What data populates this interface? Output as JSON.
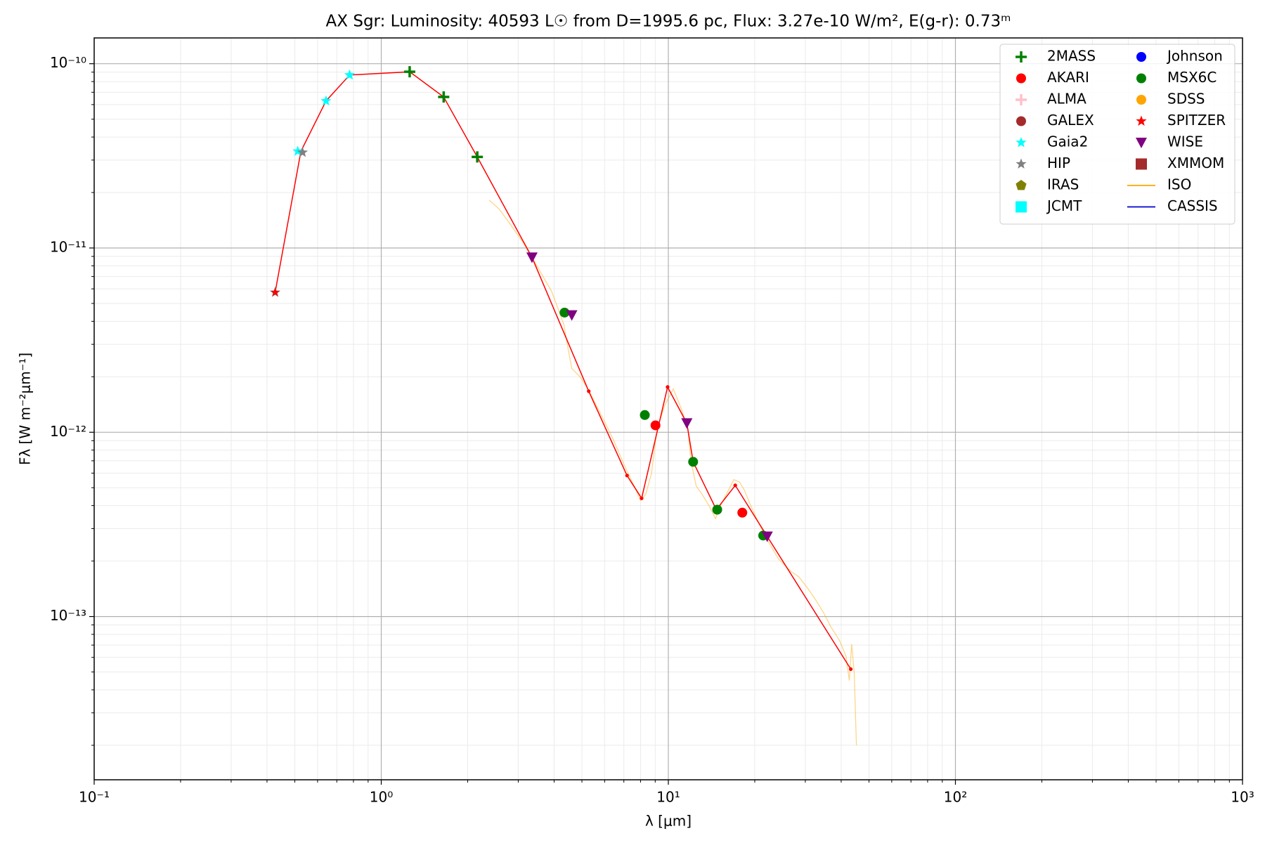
{
  "chart_data": {
    "type": "scatter",
    "title": "AX Sgr:  Luminosity: 40593 L☉ from D=1995.6 pc, Flux: 3.27e-10 W/m², E(g-r): 0.73ᵐ",
    "xlabel": "λ [μm]",
    "ylabel": "Fλ [W m⁻²μm⁻¹]",
    "xscale": "log",
    "yscale": "log",
    "grid": true,
    "legend_position": "upper right",
    "xlim": [
      0.1,
      1000
    ],
    "ylim": [
      1.3e-14,
      1.38e-10
    ],
    "xticks": [
      {
        "value": 0.1,
        "label": "10⁻¹"
      },
      {
        "value": 1,
        "label": "10⁰"
      },
      {
        "value": 10,
        "label": "10¹"
      },
      {
        "value": 100,
        "label": "10²"
      },
      {
        "value": 1000,
        "label": "10³"
      }
    ],
    "yticks": [
      {
        "value": 1e-13,
        "label": "10⁻¹³"
      },
      {
        "value": 1e-12,
        "label": "10⁻¹²"
      },
      {
        "value": 1e-11,
        "label": "10⁻¹¹"
      },
      {
        "value": 1e-10,
        "label": "10⁻¹⁰"
      }
    ],
    "sed_line": {
      "color": "#ff0000",
      "x": [
        0.427,
        0.525,
        0.642,
        0.776,
        1.256,
        1.65,
        2.16,
        3.35,
        5.28,
        7.18,
        8.07,
        9.94,
        11.6,
        12.2,
        14.7,
        17.1,
        22.1,
        43.2
      ],
      "values": [
        5.74e-12,
        3.35e-11,
        6.28e-11,
        8.68e-11,
        9.04e-11,
        6.6e-11,
        3.12e-11,
        8.89e-12,
        1.67e-12,
        5.82e-13,
        4.38e-13,
        1.76e-12,
        1.12e-12,
        6.91e-13,
        3.8e-13,
        5.15e-13,
        2.72e-13,
        5.18e-14
      ]
    },
    "series": [
      {
        "name": "2MASS",
        "color": "#008000",
        "marker": "plus",
        "x": [
          1.256,
          1.65,
          2.16
        ],
        "values": [
          9.04e-11,
          6.6e-11,
          3.12e-11
        ]
      },
      {
        "name": "AKARI",
        "color": "#ff0000",
        "marker": "circle",
        "x": [
          9.02,
          18.1
        ],
        "values": [
          1.09e-12,
          3.66e-13
        ]
      },
      {
        "name": "ALMA",
        "color": "#ffc0cb",
        "marker": "plus",
        "x": [],
        "values": []
      },
      {
        "name": "GALEX",
        "color": "#a52a2a",
        "marker": "circle",
        "x": [],
        "values": []
      },
      {
        "name": "Gaia2",
        "color": "#00ffff",
        "marker": "star",
        "x": [
          0.512,
          0.642,
          0.776
        ],
        "values": [
          3.35e-11,
          6.28e-11,
          8.68e-11
        ]
      },
      {
        "name": "HIP",
        "color": "#808080",
        "marker": "star",
        "x": [
          0.427,
          0.532
        ],
        "values": [
          5.74e-12,
          3.3e-11
        ]
      },
      {
        "name": "IRAS",
        "color": "#808000",
        "marker": "pentagon",
        "x": [],
        "values": []
      },
      {
        "name": "JCMT",
        "color": "#00ffff",
        "marker": "square",
        "x": [],
        "values": []
      },
      {
        "name": "Johnson",
        "color": "#0000ff",
        "marker": "circle",
        "x": [],
        "values": []
      },
      {
        "name": "MSX6C",
        "color": "#008000",
        "marker": "circle",
        "x": [
          4.35,
          8.28,
          12.2,
          14.8,
          21.4
        ],
        "values": [
          4.46e-12,
          1.24e-12,
          6.91e-13,
          3.8e-13,
          2.75e-13
        ]
      },
      {
        "name": "SDSS",
        "color": "#ffa500",
        "marker": "circle",
        "x": [],
        "values": []
      },
      {
        "name": "SPITZER",
        "color": "#ff0000",
        "marker": "star",
        "x": [
          0.427
        ],
        "values": [
          5.74e-12
        ]
      },
      {
        "name": "WISE",
        "color": "#800080",
        "marker": "triangle-down",
        "x": [
          3.35,
          4.61,
          11.6,
          22.1
        ],
        "values": [
          8.89e-12,
          4.32e-12,
          1.12e-12,
          2.72e-13
        ]
      },
      {
        "name": "XMMOM",
        "color": "#a52a2a",
        "marker": "square",
        "x": [],
        "values": []
      },
      {
        "name": "ISO",
        "color": "#ffa500",
        "marker": "line",
        "x": [
          2.375,
          2.57,
          2.83,
          3.12,
          3.44,
          3.92,
          4.32,
          4.47,
          4.61,
          4.92,
          5.25,
          5.79,
          6.38,
          7.04,
          7.6,
          8.01,
          8.34,
          8.73,
          9.13,
          9.74,
          10.4,
          11.1,
          11.7,
          12.0,
          12.5,
          13.1,
          13.9,
          14.6,
          15.4,
          16.2,
          16.9,
          17.7,
          18.4,
          19.4,
          20.6,
          22.0,
          24.2,
          26.7,
          28.5,
          30.4,
          32.5,
          34.6,
          37.0,
          39.4,
          41.6,
          42.7,
          43.5,
          44.4,
          45.2
        ],
        "values": [
          1.82e-11,
          1.63e-11,
          1.33e-11,
          1.07e-11,
          8.28e-12,
          5.81e-12,
          3.87e-12,
          2.86e-12,
          2.22e-12,
          2e-12,
          1.72e-12,
          1.27e-12,
          9.38e-13,
          6.58e-13,
          5.11e-13,
          4.26e-13,
          4.61e-13,
          5.94e-13,
          1.04e-12,
          1.41e-12,
          1.72e-12,
          1.34e-12,
          1.04e-12,
          6.92e-13,
          5.11e-13,
          4.61e-13,
          3.96e-13,
          3.4e-13,
          4.17e-13,
          4.85e-13,
          5.53e-13,
          5.37e-13,
          4.85e-13,
          3.96e-13,
          3.24e-13,
          2.64e-13,
          2.05e-13,
          1.76e-13,
          1.64e-13,
          1.44e-13,
          1.24e-13,
          1.06e-13,
          8.67e-14,
          7.45e-14,
          6.08e-14,
          4.49e-14,
          7.08e-14,
          4.97e-14,
          2e-14
        ]
      },
      {
        "name": "CASSIS",
        "color": "#0000cd",
        "marker": "line",
        "x": [],
        "values": []
      }
    ]
  }
}
